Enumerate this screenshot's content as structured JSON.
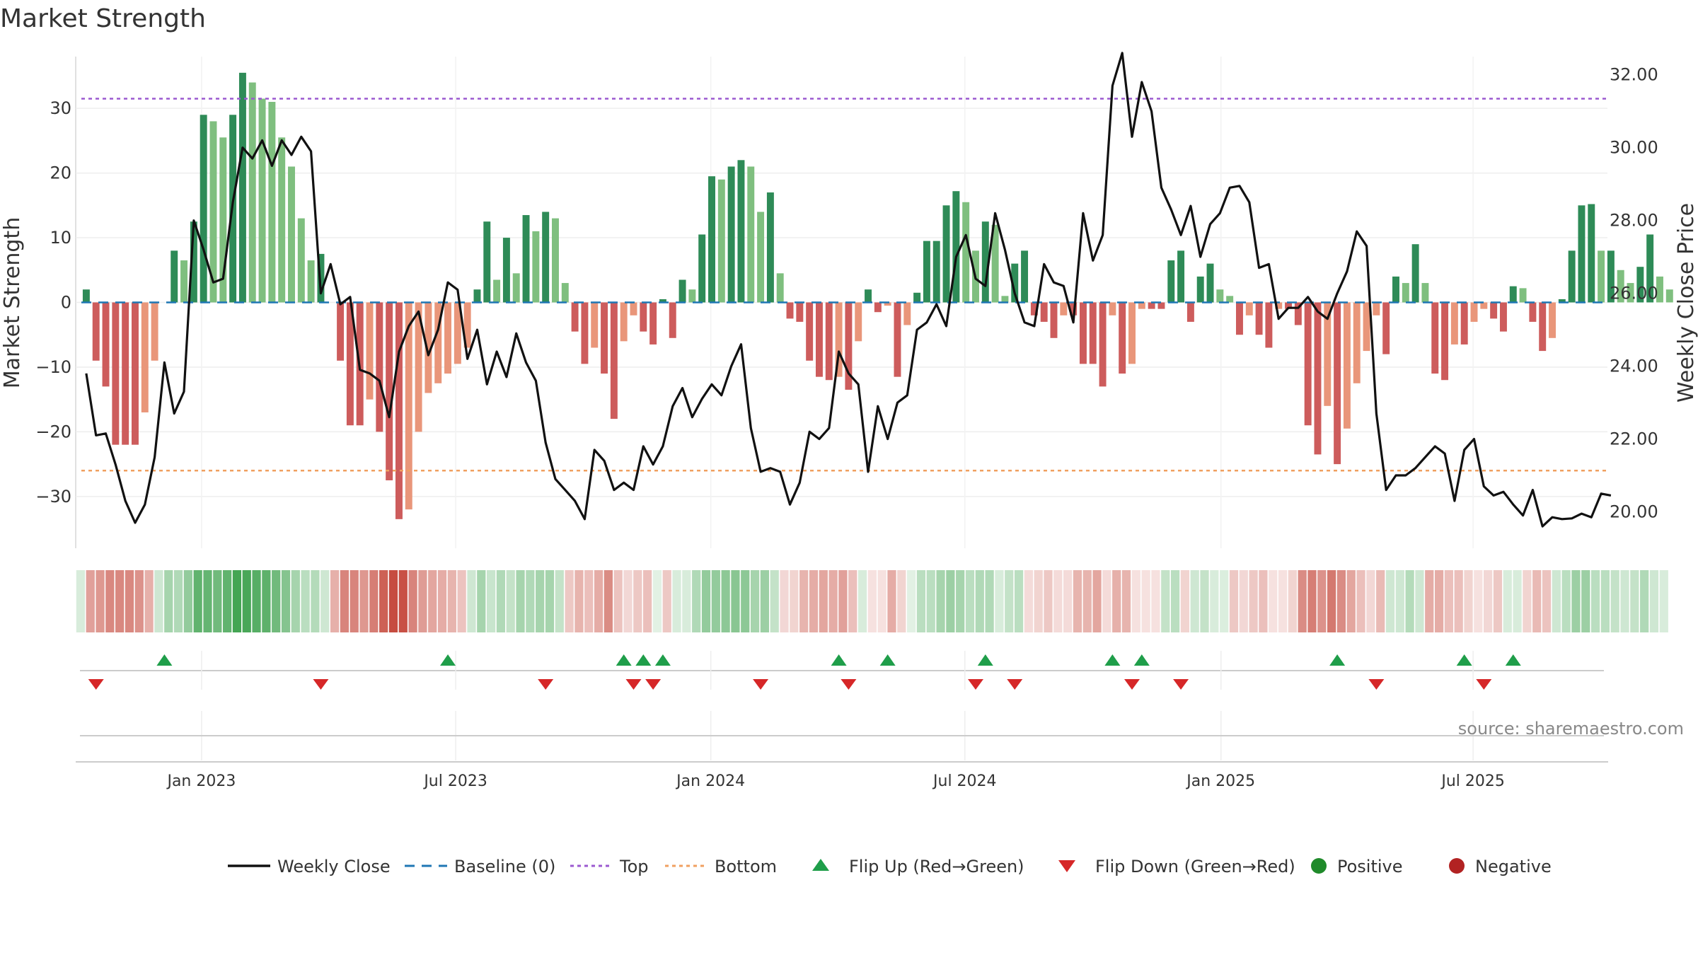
{
  "chart_data": {
    "type": "bar",
    "title": "Market Strength",
    "ylabel_left": "Market Strength",
    "ylabel_right": "Weekly Close Price",
    "source": "source: sharemaestro.com",
    "ylim_left": [
      -38,
      38
    ],
    "ylim_right": [
      19.0,
      32.5
    ],
    "yticks_left": [
      "30",
      "20",
      "10",
      "0",
      "−10",
      "−20",
      "−30"
    ],
    "yticks_left_values": [
      30,
      20,
      10,
      0,
      -10,
      -20,
      -30
    ],
    "yticks_right": [
      "32.00",
      "30.00",
      "28.00",
      "26.00",
      "24.00",
      "22.00",
      "20.00"
    ],
    "yticks_right_values": [
      32,
      30,
      28,
      26,
      24,
      22,
      20
    ],
    "x_start": "2022-10-08",
    "weeks": 156,
    "xticks": [
      {
        "label": "Jan 2023",
        "week": 12.3
      },
      {
        "label": "Jul 2023",
        "week": 38.3
      },
      {
        "label": "Jan 2024",
        "week": 64.4
      },
      {
        "label": "Jul 2024",
        "week": 90.4
      },
      {
        "label": "Jan 2025",
        "week": 116.6
      },
      {
        "label": "Jul 2025",
        "week": 142.4
      }
    ],
    "top_line": 31.5,
    "bottom_line": -26,
    "series": [
      {
        "name": "Market Strength",
        "values": [
          2,
          -9,
          -13,
          -22,
          -22,
          -22,
          -17,
          -9,
          0,
          8,
          6.5,
          12.5,
          29,
          28,
          25.5,
          29,
          35.5,
          34,
          31.5,
          31,
          25.5,
          21,
          13,
          6.5,
          7.5,
          0,
          -9,
          -19,
          -19,
          -15,
          -20,
          -27.5,
          -33.5,
          -32,
          -20,
          -14,
          -12.5,
          -11,
          -9.5,
          -7,
          2,
          12.5,
          3.5,
          10,
          4.5,
          13.5,
          11,
          14,
          13,
          3,
          -4.5,
          -9.5,
          -7,
          -11,
          -18,
          -6,
          -2,
          -4.5,
          -6.5,
          0.5,
          -5.5,
          3.5,
          2,
          10.5,
          19.5,
          19,
          21,
          22,
          21,
          14,
          17,
          4.5,
          -2.5,
          -3,
          -9,
          -11.5,
          -12,
          -11.5,
          -13.5,
          -6,
          2,
          -1.5,
          -0.5,
          -11.5,
          -3.5,
          1.5,
          9.5,
          9.5,
          15,
          17.2,
          15.5,
          8,
          12.5,
          12,
          1,
          6,
          8,
          -2,
          -3,
          -5.5,
          -2,
          -2,
          -9.5,
          -9.5,
          -13,
          -2,
          -11,
          -9.5,
          -1,
          -1,
          -1,
          6.5,
          8,
          -3,
          4,
          6,
          2,
          1,
          -5,
          -2,
          -5,
          -7,
          -1,
          -1,
          -3.5,
          -19,
          -23.5,
          -16,
          -25,
          -19.5,
          -12.5,
          -7.5,
          -2,
          -8,
          4,
          3,
          9,
          3,
          -11,
          -12,
          -6.5,
          -6.5,
          -3,
          -1,
          -2.5,
          -4.5,
          2.5,
          2.2,
          -3,
          -7.5,
          -5.5,
          0.5,
          8,
          15,
          15.2,
          8,
          8,
          5,
          3,
          5.5,
          10.5,
          4,
          2
        ]
      },
      {
        "name": "Weekly Close",
        "values": [
          23.8,
          22.1,
          22.15,
          21.3,
          20.3,
          19.7,
          20.2,
          21.5,
          24.1,
          22.7,
          23.3,
          28.0,
          27.2,
          26.3,
          26.4,
          28.5,
          30.0,
          29.7,
          30.2,
          29.5,
          30.2,
          29.8,
          30.3,
          29.9,
          26.0,
          26.8,
          25.7,
          25.9,
          23.9,
          23.8,
          23.6,
          22.6,
          24.4,
          25.1,
          25.5,
          24.3,
          25.0,
          26.3,
          26.1,
          24.2,
          25.0,
          23.5,
          24.4,
          23.7,
          24.9,
          24.1,
          23.6,
          21.9,
          20.9,
          20.6,
          20.3,
          19.8,
          21.7,
          21.4,
          20.6,
          20.8,
          20.6,
          21.8,
          21.3,
          21.8,
          22.9,
          23.4,
          22.6,
          23.1,
          23.5,
          23.2,
          24.0,
          24.6,
          22.3,
          21.1,
          21.2,
          21.1,
          20.2,
          20.8,
          22.2,
          22.0,
          22.3,
          24.4,
          23.8,
          23.5,
          21.1,
          22.9,
          22.0,
          23.0,
          23.2,
          25.0,
          25.2,
          25.7,
          25.1,
          27.0,
          27.6,
          26.4,
          26.2,
          28.2,
          27.2,
          26.0,
          25.2,
          25.1,
          26.8,
          26.3,
          26.2,
          25.2,
          28.2,
          26.9,
          27.6,
          31.7,
          32.6,
          30.3,
          31.8,
          31.0,
          28.9,
          28.3,
          27.6,
          28.4,
          27.0,
          27.9,
          28.2,
          28.9,
          28.95,
          28.5,
          26.7,
          26.8,
          25.3,
          25.6,
          25.6,
          25.9,
          25.5,
          25.3,
          26.0,
          26.6,
          27.7,
          27.3,
          22.7,
          20.6,
          21.0,
          21.0,
          21.2,
          21.5,
          21.8,
          21.6,
          20.3,
          21.7,
          22.0,
          20.7,
          20.45,
          20.55,
          20.2,
          19.9,
          20.6,
          19.6,
          19.85,
          19.8,
          19.82,
          19.95,
          19.85,
          20.5,
          20.45
        ]
      }
    ],
    "heatmap_levels": [
      0.2,
      0.48,
      0.52,
      0.6,
      0.6,
      0.6,
      0.55,
      0.4,
      0.25,
      0.45,
      0.4,
      0.55,
      0.8,
      0.78,
      0.72,
      0.8,
      0.95,
      0.92,
      0.85,
      0.82,
      0.72,
      0.62,
      0.45,
      0.35,
      0.38,
      0.25,
      0.4,
      0.62,
      0.62,
      0.52,
      0.65,
      0.8,
      0.9,
      0.88,
      0.62,
      0.5,
      0.45,
      0.42,
      0.38,
      0.3,
      0.25,
      0.45,
      0.28,
      0.4,
      0.3,
      0.45,
      0.4,
      0.45,
      0.45,
      0.3,
      0.28,
      0.38,
      0.32,
      0.42,
      0.58,
      0.3,
      0.2,
      0.28,
      0.32,
      0.15,
      0.28,
      0.2,
      0.2,
      0.4,
      0.55,
      0.55,
      0.58,
      0.6,
      0.58,
      0.45,
      0.5,
      0.3,
      0.2,
      0.22,
      0.38,
      0.42,
      0.45,
      0.42,
      0.48,
      0.32,
      0.2,
      0.15,
      0.15,
      0.42,
      0.22,
      0.15,
      0.35,
      0.35,
      0.45,
      0.5,
      0.45,
      0.35,
      0.4,
      0.4,
      0.2,
      0.3,
      0.35,
      0.18,
      0.22,
      0.28,
      0.18,
      0.18,
      0.38,
      0.38,
      0.45,
      0.18,
      0.4,
      0.38,
      0.15,
      0.15,
      0.15,
      0.3,
      0.35,
      0.22,
      0.25,
      0.3,
      0.2,
      0.18,
      0.28,
      0.2,
      0.28,
      0.32,
      0.15,
      0.15,
      0.22,
      0.58,
      0.65,
      0.55,
      0.68,
      0.58,
      0.45,
      0.32,
      0.2,
      0.35,
      0.25,
      0.25,
      0.38,
      0.25,
      0.42,
      0.42,
      0.32,
      0.32,
      0.22,
      0.15,
      0.2,
      0.28,
      0.2,
      0.2,
      0.22,
      0.35,
      0.3,
      0.25,
      0.35,
      0.5,
      0.5,
      0.35,
      0.35,
      0.3,
      0.25,
      0.3,
      0.4,
      0.25,
      0.2
    ],
    "flip_up_weeks": [
      8,
      37,
      55,
      57,
      59,
      77,
      82,
      92,
      105,
      108,
      128,
      141,
      146
    ],
    "flip_down_weeks": [
      1,
      24,
      47,
      56,
      58,
      69,
      78,
      91,
      95,
      107,
      112,
      132,
      143
    ],
    "legend": [
      {
        "label": "Weekly Close",
        "kind": "line",
        "color": "#111111"
      },
      {
        "label": "Baseline (0)",
        "kind": "dashed",
        "color": "#1f77b4"
      },
      {
        "label": "Top",
        "kind": "dotted",
        "color": "#9b59d0"
      },
      {
        "label": "Bottom",
        "kind": "dotted",
        "color": "#f0a060"
      },
      {
        "label": "Flip Up (Red→Green)",
        "kind": "triangle-up",
        "color": "#1f9e4a"
      },
      {
        "label": "Flip Down (Green→Red)",
        "kind": "triangle-down",
        "color": "#d62728"
      },
      {
        "label": "Positive",
        "kind": "dot",
        "color": "#1f8a2a"
      },
      {
        "label": "Negative",
        "kind": "dot",
        "color": "#b22222"
      }
    ],
    "colors": {
      "pos_dark": "#2e8b57",
      "pos_light": "#7fbf7f",
      "neg_dark": "#cd5c5c",
      "neg_light": "#e9967a",
      "heat_pos": "#3aa04a",
      "heat_neg": "#c0392b",
      "price": "#111111",
      "baseline": "#1f77b4",
      "top": "#9b59d0",
      "bottom": "#f0a060",
      "up": "#1f9e4a",
      "down": "#d62728"
    }
  }
}
